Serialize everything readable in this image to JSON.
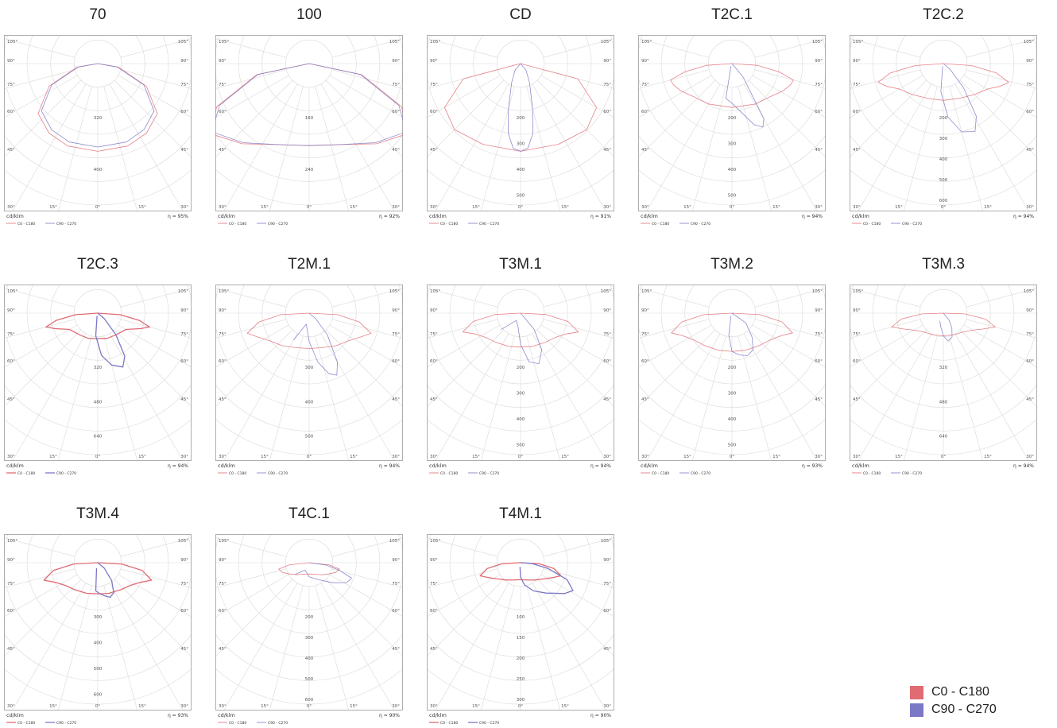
{
  "legend": {
    "red": {
      "label": "C0 - C180",
      "color": "#e06b73"
    },
    "blue": {
      "label": "C90 - C270",
      "color": "#7b78c6"
    }
  },
  "common": {
    "unit": "cd/klm",
    "mini_legend_red": "C0 - C180",
    "mini_legend_blue": "C90 - C270"
  },
  "chart_data": [
    {
      "type": "polar",
      "title": "70",
      "efficiency": "η = 95%",
      "ring_labels": [
        "320",
        "400"
      ],
      "strong": false,
      "red": [
        [
          0,
          0.62
        ],
        [
          20,
          0.62
        ],
        [
          35,
          0.6
        ],
        [
          50,
          0.55
        ],
        [
          65,
          0.38
        ],
        [
          80,
          0.15
        ],
        [
          90,
          0.0
        ]
      ],
      "blue": [
        [
          0,
          0.59
        ],
        [
          20,
          0.59
        ],
        [
          35,
          0.57
        ],
        [
          50,
          0.52
        ],
        [
          65,
          0.36
        ],
        [
          80,
          0.14
        ],
        [
          90,
          0.0
        ]
      ],
      "blue_sym": true
    },
    {
      "type": "polar",
      "title": "100",
      "efficiency": "η = 92%",
      "ring_labels": [
        "160",
        "240"
      ],
      "strong": false,
      "red": [
        [
          0,
          0.58
        ],
        [
          20,
          0.61
        ],
        [
          40,
          0.74
        ],
        [
          55,
          0.86
        ],
        [
          65,
          0.72
        ],
        [
          78,
          0.38
        ],
        [
          90,
          0.0
        ]
      ],
      "blue": [
        [
          0,
          0.58
        ],
        [
          20,
          0.61
        ],
        [
          40,
          0.73
        ],
        [
          55,
          0.84
        ],
        [
          65,
          0.7
        ],
        [
          78,
          0.37
        ],
        [
          90,
          0.0
        ]
      ],
      "blue_sym": true
    },
    {
      "type": "polar",
      "title": "CD",
      "efficiency": "η = 91%",
      "ring_labels": [
        "200",
        "300",
        "400",
        "500"
      ],
      "strong": false,
      "red": [
        [
          0,
          0.62
        ],
        [
          25,
          0.63
        ],
        [
          45,
          0.66
        ],
        [
          60,
          0.62
        ],
        [
          75,
          0.42
        ],
        [
          90,
          0.0
        ]
      ],
      "blue": [
        [
          0,
          0.62
        ],
        [
          5,
          0.6
        ],
        [
          10,
          0.5
        ],
        [
          15,
          0.33
        ],
        [
          25,
          0.15
        ],
        [
          40,
          0.06
        ],
        [
          90,
          0.0
        ]
      ],
      "blue_sym": true
    },
    {
      "type": "polar",
      "title": "T2C.1",
      "efficiency": "η = 94%",
      "ring_labels": [
        "200",
        "300",
        "400",
        "500"
      ],
      "strong": false,
      "red": [
        [
          0,
          0.31
        ],
        [
          30,
          0.33
        ],
        [
          50,
          0.36
        ],
        [
          62,
          0.41
        ],
        [
          70,
          0.44
        ],
        [
          75,
          0.45
        ],
        [
          80,
          0.34
        ],
        [
          86,
          0.18
        ],
        [
          90,
          0.0
        ]
      ],
      "blue": [
        [
          -20,
          0.02
        ],
        [
          -10,
          0.25
        ],
        [
          0,
          0.28
        ],
        [
          12,
          0.36
        ],
        [
          20,
          0.46
        ],
        [
          26,
          0.5
        ],
        [
          30,
          0.45
        ],
        [
          40,
          0.12
        ],
        [
          90,
          0.0
        ]
      ],
      "blue_sym": false
    },
    {
      "type": "polar",
      "title": "T2C.2",
      "efficiency": "η = 94%",
      "ring_labels": [
        "200",
        "300",
        "400",
        "500",
        "600"
      ],
      "strong": false,
      "red": [
        [
          0,
          0.26
        ],
        [
          25,
          0.27
        ],
        [
          45,
          0.31
        ],
        [
          60,
          0.36
        ],
        [
          68,
          0.43
        ],
        [
          74,
          0.48
        ],
        [
          80,
          0.38
        ],
        [
          86,
          0.2
        ],
        [
          90,
          0.0
        ]
      ],
      "blue": [
        [
          -15,
          0.02
        ],
        [
          -5,
          0.2
        ],
        [
          5,
          0.38
        ],
        [
          15,
          0.5
        ],
        [
          25,
          0.53
        ],
        [
          32,
          0.44
        ],
        [
          40,
          0.22
        ],
        [
          50,
          0.06
        ],
        [
          90,
          0.0
        ]
      ],
      "blue_sym": false
    },
    {
      "type": "polar",
      "title": "T2C.3",
      "efficiency": "η = 94%",
      "ring_labels": [
        "320",
        "480",
        "640"
      ],
      "strong": true,
      "red": [
        [
          0,
          0.18
        ],
        [
          20,
          0.19
        ],
        [
          40,
          0.2
        ],
        [
          60,
          0.23
        ],
        [
          70,
          0.32
        ],
        [
          75,
          0.38
        ],
        [
          80,
          0.3
        ],
        [
          86,
          0.16
        ],
        [
          90,
          0.0
        ]
      ],
      "blue": [
        [
          -15,
          0.02
        ],
        [
          -5,
          0.16
        ],
        [
          5,
          0.3
        ],
        [
          15,
          0.38
        ],
        [
          25,
          0.42
        ],
        [
          32,
          0.36
        ],
        [
          40,
          0.2
        ],
        [
          50,
          0.06
        ],
        [
          90,
          0.0
        ]
      ],
      "blue_sym": false
    },
    {
      "type": "polar",
      "title": "T2M.1",
      "efficiency": "η = 94%",
      "ring_labels": [
        "300",
        "400",
        "500"
      ],
      "strong": false,
      "red": [
        [
          0,
          0.25
        ],
        [
          20,
          0.26
        ],
        [
          40,
          0.3
        ],
        [
          55,
          0.34
        ],
        [
          65,
          0.4
        ],
        [
          72,
          0.46
        ],
        [
          80,
          0.36
        ],
        [
          87,
          0.2
        ],
        [
          90,
          0.0
        ]
      ],
      "blue": [
        [
          -30,
          0.22
        ],
        [
          -15,
          0.08
        ],
        [
          0,
          0.2
        ],
        [
          10,
          0.35
        ],
        [
          18,
          0.45
        ],
        [
          24,
          0.48
        ],
        [
          30,
          0.4
        ],
        [
          40,
          0.2
        ],
        [
          50,
          0.06
        ],
        [
          90,
          0.0
        ]
      ],
      "blue_sym": false
    },
    {
      "type": "polar",
      "title": "T3M.1",
      "efficiency": "η = 94%",
      "ring_labels": [
        "200",
        "300",
        "400",
        "500"
      ],
      "strong": false,
      "red": [
        [
          0,
          0.24
        ],
        [
          20,
          0.25
        ],
        [
          40,
          0.27
        ],
        [
          55,
          0.3
        ],
        [
          65,
          0.35
        ],
        [
          72,
          0.43
        ],
        [
          80,
          0.34
        ],
        [
          87,
          0.18
        ],
        [
          90,
          0.0
        ]
      ],
      "blue": [
        [
          -50,
          0.18
        ],
        [
          -30,
          0.06
        ],
        [
          -10,
          0.1
        ],
        [
          0,
          0.22
        ],
        [
          10,
          0.35
        ],
        [
          20,
          0.38
        ],
        [
          30,
          0.3
        ],
        [
          40,
          0.15
        ],
        [
          90,
          0.0
        ]
      ],
      "blue_sym": false
    },
    {
      "type": "polar",
      "title": "T3M.2",
      "efficiency": "η = 93%",
      "ring_labels": [
        "200",
        "300",
        "400",
        "500"
      ],
      "strong": false,
      "red": [
        [
          0,
          0.27
        ],
        [
          20,
          0.28
        ],
        [
          40,
          0.3
        ],
        [
          55,
          0.33
        ],
        [
          65,
          0.38
        ],
        [
          72,
          0.45
        ],
        [
          80,
          0.36
        ],
        [
          87,
          0.2
        ],
        [
          90,
          0.0
        ]
      ],
      "blue": [
        [
          -20,
          0.02
        ],
        [
          -8,
          0.16
        ],
        [
          0,
          0.27
        ],
        [
          10,
          0.3
        ],
        [
          20,
          0.32
        ],
        [
          30,
          0.3
        ],
        [
          40,
          0.22
        ],
        [
          55,
          0.12
        ],
        [
          90,
          0.0
        ]
      ],
      "blue_sym": false
    },
    {
      "type": "polar",
      "title": "T3M.3",
      "efficiency": "η = 94%",
      "ring_labels": [
        "320",
        "480",
        "640"
      ],
      "strong": false,
      "red": [
        [
          0,
          0.16
        ],
        [
          25,
          0.17
        ],
        [
          45,
          0.19
        ],
        [
          60,
          0.24
        ],
        [
          68,
          0.3
        ],
        [
          75,
          0.38
        ],
        [
          82,
          0.3
        ],
        [
          88,
          0.15
        ],
        [
          90,
          0.0
        ]
      ],
      "blue": [
        [
          -25,
          0.06
        ],
        [
          -10,
          0.1
        ],
        [
          0,
          0.16
        ],
        [
          10,
          0.2
        ],
        [
          20,
          0.18
        ],
        [
          30,
          0.12
        ],
        [
          40,
          0.06
        ],
        [
          90,
          0.0
        ]
      ],
      "blue_sym": false
    },
    {
      "type": "polar",
      "title": "T3M.4",
      "efficiency": "η = 93%",
      "ring_labels": [
        "300",
        "400",
        "500",
        "600"
      ],
      "strong": true,
      "red": [
        [
          0,
          0.22
        ],
        [
          20,
          0.23
        ],
        [
          40,
          0.25
        ],
        [
          55,
          0.28
        ],
        [
          65,
          0.33
        ],
        [
          72,
          0.4
        ],
        [
          80,
          0.32
        ],
        [
          87,
          0.17
        ],
        [
          90,
          0.0
        ]
      ],
      "blue": [
        [
          -12,
          0.04
        ],
        [
          -4,
          0.2
        ],
        [
          4,
          0.22
        ],
        [
          12,
          0.24
        ],
        [
          20,
          0.26
        ],
        [
          28,
          0.24
        ],
        [
          38,
          0.16
        ],
        [
          50,
          0.06
        ],
        [
          90,
          0.0
        ]
      ],
      "blue_sym": false
    },
    {
      "type": "polar",
      "title": "T4C.1",
      "efficiency": "η = 90%",
      "ring_labels": [
        "200",
        "300",
        "400",
        "500",
        "600"
      ],
      "strong": false,
      "red": [
        [
          0,
          0.08
        ],
        [
          25,
          0.09
        ],
        [
          45,
          0.12
        ],
        [
          60,
          0.16
        ],
        [
          70,
          0.2
        ],
        [
          78,
          0.22
        ],
        [
          84,
          0.14
        ],
        [
          90,
          0.0
        ]
      ],
      "blue": [
        [
          -50,
          0.13
        ],
        [
          -30,
          0.06
        ],
        [
          0,
          0.1
        ],
        [
          30,
          0.14
        ],
        [
          50,
          0.22
        ],
        [
          62,
          0.3
        ],
        [
          70,
          0.32
        ],
        [
          76,
          0.22
        ],
        [
          82,
          0.12
        ],
        [
          90,
          0.0
        ]
      ],
      "blue_sym": false
    },
    {
      "type": "polar",
      "title": "T4M.1",
      "efficiency": "η = 90%",
      "ring_labels": [
        "100",
        "150",
        "200",
        "250",
        "300"
      ],
      "strong": true,
      "red": [
        [
          0,
          0.12
        ],
        [
          20,
          0.13
        ],
        [
          40,
          0.16
        ],
        [
          55,
          0.2
        ],
        [
          65,
          0.25
        ],
        [
          72,
          0.3
        ],
        [
          80,
          0.24
        ],
        [
          87,
          0.13
        ],
        [
          90,
          0.0
        ]
      ],
      "blue": [
        [
          -8,
          0.03
        ],
        [
          0,
          0.1
        ],
        [
          10,
          0.16
        ],
        [
          25,
          0.22
        ],
        [
          40,
          0.28
        ],
        [
          55,
          0.38
        ],
        [
          62,
          0.42
        ],
        [
          70,
          0.35
        ],
        [
          78,
          0.2
        ],
        [
          86,
          0.08
        ],
        [
          90,
          0.0
        ]
      ],
      "blue_sym": false
    }
  ]
}
